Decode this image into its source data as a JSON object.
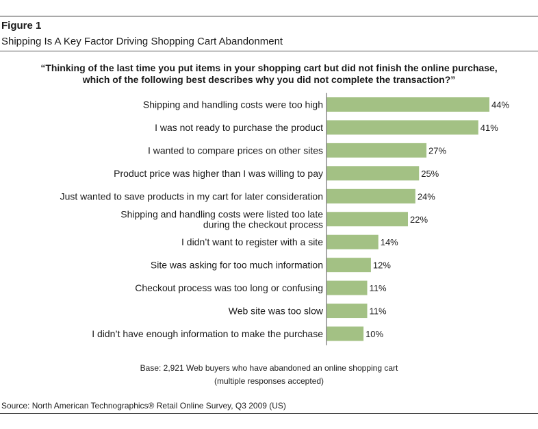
{
  "figure": {
    "label": "Figure 1",
    "title": "Shipping Is A Key Factor Driving Shopping Cart Abandonment"
  },
  "question": {
    "line1": "“Thinking of the last time you put items in your shopping cart but did not finish the online purchase,",
    "line2": "which of the following best describes why you did not complete the transaction?”"
  },
  "chart_data": {
    "type": "bar",
    "orientation": "horizontal",
    "title": "“Thinking of the last time you put items in your shopping cart but did not finish the online purchase, which of the following best describes why you did not complete the transaction?”",
    "categories": [
      [
        "Shipping and handling costs were too high"
      ],
      [
        "I was not ready to purchase the product"
      ],
      [
        "I wanted to compare prices on other sites"
      ],
      [
        "Product price was higher than I was willing to pay"
      ],
      [
        "Just wanted to save products in my cart for later consideration"
      ],
      [
        "Shipping and handling costs were listed too late",
        "during the checkout process"
      ],
      [
        "I didn’t want to register with a site"
      ],
      [
        "Site was asking for too much information"
      ],
      [
        "Checkout process was too long or confusing"
      ],
      [
        "Web site was too slow"
      ],
      [
        "I didn’t have enough information to make the purchase"
      ]
    ],
    "values": [
      44,
      41,
      27,
      25,
      24,
      22,
      14,
      12,
      11,
      11,
      10
    ],
    "value_labels": [
      "44%",
      "41%",
      "27%",
      "25%",
      "24%",
      "22%",
      "14%",
      "12%",
      "11%",
      "11%",
      "10%"
    ],
    "unit": "%",
    "xlim": [
      0,
      44
    ],
    "bar_color": "#a3c184",
    "axis_color": "#6f6f6f",
    "grid": false
  },
  "base": {
    "line1": "Base: 2,921 Web buyers who have abandoned an online shopping cart",
    "line2": "(multiple responses accepted)"
  },
  "source": "Source: North American Technographics® Retail Online Survey, Q3 2009 (US)"
}
